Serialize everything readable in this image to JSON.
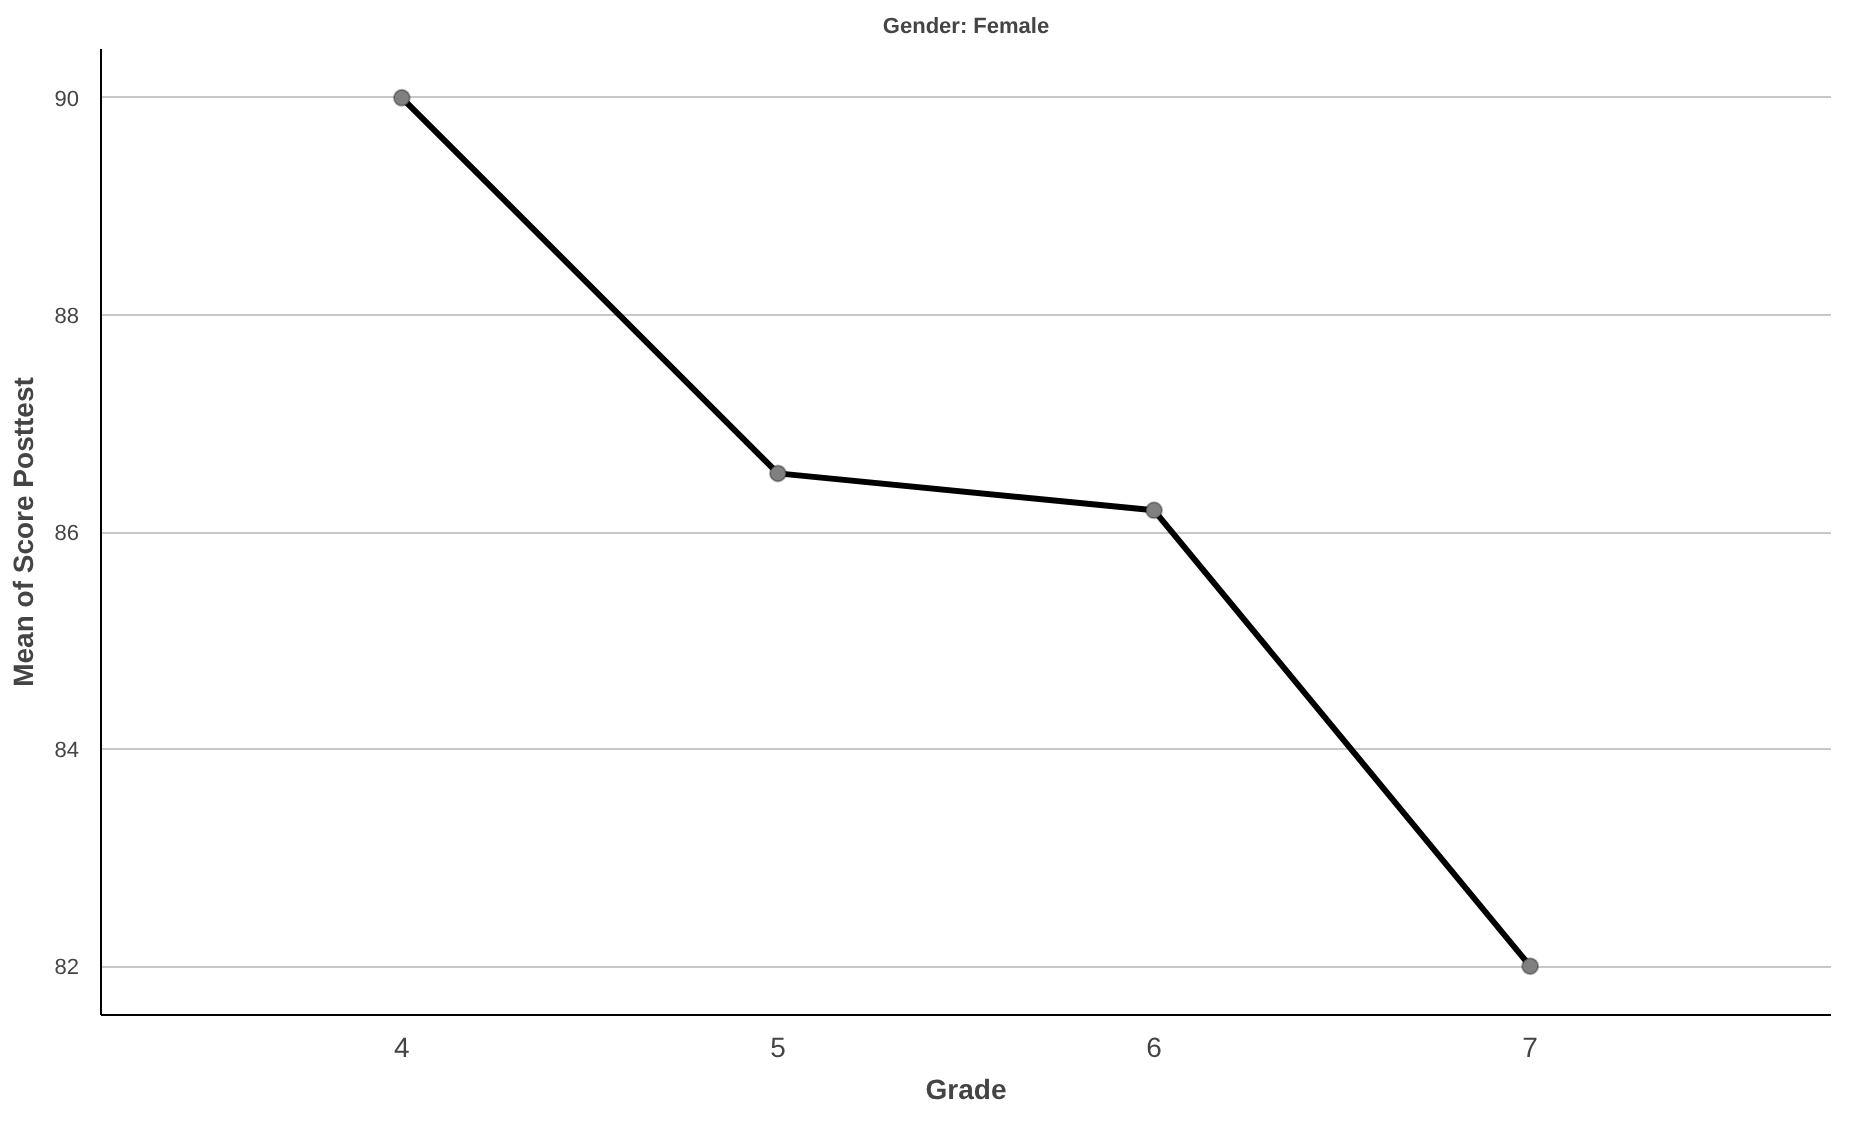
{
  "chart_data": {
    "type": "line",
    "title": "Gender: Female",
    "xlabel": "Grade",
    "ylabel": "Mean of Score Posttest",
    "categories": [
      "4",
      "5",
      "6",
      "7"
    ],
    "series": [
      {
        "color": "#000000",
        "values": [
          90,
          86.54,
          86.2,
          82
        ]
      }
    ],
    "ylim": [
      81.55,
      90.45
    ],
    "yticks": [
      82,
      84,
      86,
      88,
      90
    ],
    "grid": "y",
    "marker": "circle",
    "line_style": "solid"
  }
}
